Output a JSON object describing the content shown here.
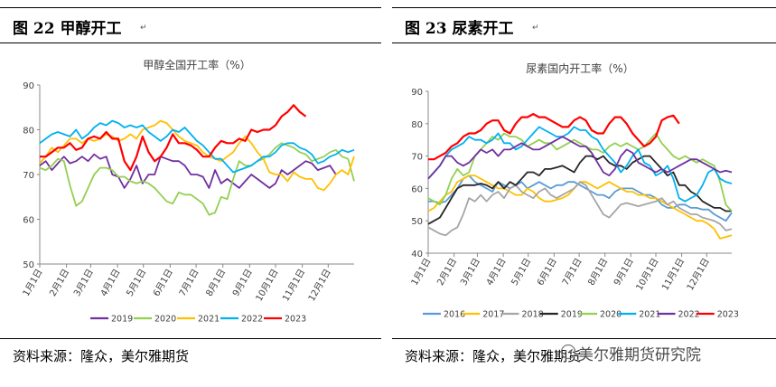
{
  "left": {
    "fig_title": "图 22    甲醇开工",
    "source": "资料来源：隆众，美尔雅期货",
    "chart_data": {
      "type": "line",
      "title": "甲醇全国开工率（%）",
      "xlabel": "",
      "ylabel": "",
      "ylim": [
        50,
        90
      ],
      "y_ticks": [
        50,
        60,
        70,
        80,
        90
      ],
      "x_range": [
        1,
        53
      ],
      "x_ticks": [
        {
          "label": "1月1日",
          "x": 1
        },
        {
          "label": "2月1日",
          "x": 5.43
        },
        {
          "label": "3月1日",
          "x": 9.43
        },
        {
          "label": "4月1日",
          "x": 13.86
        },
        {
          "label": "5月1日",
          "x": 18.14
        },
        {
          "label": "6月1日",
          "x": 22.57
        },
        {
          "label": "7月1日",
          "x": 26.86
        },
        {
          "label": "8月1日",
          "x": 31.29
        },
        {
          "label": "9月1日",
          "x": 35.71
        },
        {
          "label": "10月1日",
          "x": 40
        },
        {
          "label": "11月1日",
          "x": 44.43
        },
        {
          "label": "12月1日",
          "x": 48.71
        }
      ],
      "grid": false,
      "legend": "bottom",
      "series": [
        {
          "name": "2019",
          "color": "#7030A0",
          "values": [
            72,
            73,
            71,
            72.5,
            74,
            72.5,
            73,
            74,
            73,
            74.5,
            73.5,
            74,
            70,
            69.5,
            67,
            69,
            72,
            68,
            70,
            70,
            74,
            73.5,
            73,
            73,
            72,
            70,
            70,
            69.5,
            67,
            71,
            68,
            69,
            68,
            67,
            68.5,
            70,
            69,
            68,
            67,
            68,
            71,
            70,
            71,
            72,
            73,
            72.5,
            71,
            71.5,
            72,
            70,
            null,
            null,
            null
          ]
        },
        {
          "name": "2020",
          "color": "#92D050",
          "values": [
            71.5,
            71,
            72,
            73.5,
            73,
            67.5,
            63,
            64,
            67,
            70,
            71.5,
            71.5,
            71,
            69.5,
            69.5,
            68.5,
            68,
            68.5,
            68,
            67,
            65.5,
            64,
            63.5,
            66,
            65.5,
            65.5,
            64.5,
            63.5,
            61,
            61.5,
            65,
            64.5,
            69,
            73,
            72,
            72,
            73,
            73.5,
            74.5,
            76,
            77,
            76.5,
            76,
            75,
            74.5,
            73,
            73.5,
            74,
            75,
            75.5,
            74,
            73.5,
            68.5
          ]
        },
        {
          "name": "2021",
          "color": "#FFC000",
          "values": [
            72.5,
            74,
            76,
            75,
            76.5,
            78,
            78,
            77,
            78,
            77.5,
            78,
            79,
            78.5,
            77.5,
            78,
            79,
            78,
            80,
            80.5,
            81,
            82,
            81.5,
            80,
            78.5,
            77.5,
            77,
            76.5,
            75,
            74,
            73.5,
            73,
            74,
            75,
            77,
            78.5,
            77,
            75,
            73.5,
            70.5,
            70,
            70,
            68.5,
            70.5,
            69.5,
            69,
            69,
            67,
            66.5,
            68,
            70,
            71,
            70,
            74
          ]
        },
        {
          "name": "2022",
          "color": "#00B0F0",
          "values": [
            77,
            78,
            79,
            79.5,
            79,
            78.5,
            80,
            78,
            79,
            80.5,
            81.5,
            81,
            82,
            81.5,
            80.5,
            81,
            80.5,
            81,
            79.5,
            78.5,
            77.5,
            78.5,
            80,
            79.5,
            80.5,
            79,
            77.5,
            76.5,
            75,
            73.5,
            73.5,
            72,
            70.5,
            71,
            71.5,
            72,
            73,
            74,
            74,
            75,
            76.5,
            77,
            77,
            76,
            75.5,
            74.5,
            72.5,
            73,
            74,
            74.5,
            75.5,
            75,
            75.5
          ]
        },
        {
          "name": "2023",
          "color": "#FF0000",
          "values": [
            74,
            74,
            75,
            76,
            76,
            77,
            75.5,
            76,
            78,
            78.5,
            78,
            79.5,
            78,
            78,
            73,
            71,
            74,
            78.5,
            75,
            73,
            74,
            76,
            79,
            77,
            77,
            76.5,
            75.5,
            74,
            74,
            76,
            77.5,
            77,
            77,
            78,
            77.5,
            80,
            79.5,
            80,
            80,
            81,
            83,
            84,
            85.5,
            84,
            83,
            null,
            null,
            null,
            null,
            null,
            null,
            null,
            null
          ]
        }
      ]
    }
  },
  "right": {
    "fig_title": "图 23    尿素开工",
    "source": "资料来源：隆众，美尔雅期货",
    "chart_data": {
      "type": "line",
      "title": "尿素国内开工率（%）",
      "xlabel": "",
      "ylabel": "",
      "ylim": [
        40,
        90
      ],
      "y_ticks": [
        40,
        50,
        60,
        70,
        80,
        90
      ],
      "x_range": [
        1,
        53
      ],
      "x_ticks": [
        {
          "label": "1月1日",
          "x": 1
        },
        {
          "label": "2月1日",
          "x": 5.43
        },
        {
          "label": "3月1日",
          "x": 9.43
        },
        {
          "label": "4月1日",
          "x": 13.86
        },
        {
          "label": "5月1日",
          "x": 18.14
        },
        {
          "label": "6月1日",
          "x": 22.57
        },
        {
          "label": "7月1日",
          "x": 26.86
        },
        {
          "label": "8月1日",
          "x": 31.29
        },
        {
          "label": "9月1日",
          "x": 35.71
        },
        {
          "label": "10月1日",
          "x": 40
        },
        {
          "label": "11月1日",
          "x": 44.43
        },
        {
          "label": "12月1日",
          "x": 48.71
        }
      ],
      "grid": false,
      "legend": "bottom",
      "series": [
        {
          "name": "2016",
          "color": "#5B9BD5",
          "values": [
            56,
            56,
            55.5,
            56,
            58,
            60,
            63,
            64,
            62,
            61,
            60,
            59,
            62,
            61,
            60,
            61,
            62,
            60,
            61,
            62,
            61,
            60,
            61,
            61,
            62,
            62,
            61,
            60,
            59,
            58,
            58,
            57,
            59,
            60,
            60,
            60,
            59,
            58,
            58,
            57,
            55,
            54,
            54,
            55,
            55,
            54,
            54,
            53.5,
            53.5,
            52,
            51,
            50,
            52.5
          ]
        },
        {
          "name": "2017",
          "color": "#FFC000",
          "values": [
            53,
            54,
            56,
            58,
            59,
            62,
            63,
            64,
            64,
            63,
            62,
            61,
            60,
            60,
            59,
            58,
            58,
            60,
            59,
            57,
            56,
            56,
            56.5,
            57,
            58,
            60,
            62,
            62,
            61,
            60,
            61,
            62,
            61,
            60,
            59,
            59,
            58,
            58,
            57,
            57,
            56,
            55,
            54,
            53,
            52,
            51,
            50,
            50,
            49,
            47.5,
            44.5,
            45,
            45.5
          ]
        },
        {
          "name": "2018",
          "color": "#A5A5A5",
          "values": [
            48,
            47,
            46,
            45.5,
            47,
            48,
            52,
            57,
            56,
            58,
            56,
            58,
            59,
            57,
            60,
            61,
            59,
            58,
            57,
            59,
            60,
            58,
            57,
            58,
            59,
            60,
            62,
            61,
            58,
            55,
            52,
            51,
            53,
            55,
            55.5,
            55,
            54.5,
            55,
            55.5,
            56,
            57,
            55,
            56,
            54,
            53,
            52,
            52,
            51,
            50.5,
            50,
            49,
            47,
            47.5
          ]
        },
        {
          "name": "2019",
          "color": "#262626",
          "values": [
            49,
            50,
            51,
            54,
            57,
            60,
            61,
            61,
            61,
            61.5,
            61,
            60,
            62,
            60,
            62,
            61,
            63,
            65,
            65,
            64,
            66,
            66,
            66.5,
            67,
            66,
            65,
            68,
            70,
            70,
            69,
            70,
            68,
            67,
            67,
            66,
            68,
            69,
            70,
            70,
            68,
            66,
            64,
            65,
            61,
            61,
            59,
            58,
            56,
            55,
            54,
            54,
            53,
            53
          ]
        },
        {
          "name": "2020",
          "color": "#92D050",
          "values": [
            57,
            56,
            55,
            58,
            63,
            66,
            64,
            65,
            70,
            72,
            74,
            76,
            75,
            77,
            76,
            76,
            75,
            73,
            74,
            75,
            74,
            74,
            72,
            73,
            74,
            75,
            74,
            73,
            72,
            72,
            71,
            73,
            74,
            73,
            74,
            73,
            72,
            73,
            75,
            77,
            74,
            72,
            70,
            69,
            70,
            69,
            68,
            69,
            68,
            67,
            62,
            55,
            53
          ]
        },
        {
          "name": "2021",
          "color": "#00B0F0",
          "values": [
            63,
            65,
            67,
            70,
            72,
            73,
            74,
            76,
            75,
            75,
            74,
            75,
            77,
            74,
            74,
            72,
            73,
            75,
            77,
            79,
            78,
            77,
            76,
            76,
            77,
            79,
            78,
            78,
            76,
            75,
            72,
            70,
            68,
            65,
            67,
            70,
            72,
            68,
            67,
            64,
            65,
            67,
            63,
            57,
            56,
            57,
            58,
            61,
            65,
            66,
            63,
            62,
            61.5
          ]
        },
        {
          "name": "2022",
          "color": "#7030A0",
          "values": [
            63,
            65,
            67,
            70,
            70,
            68,
            67,
            68,
            70,
            72,
            71,
            72,
            70,
            72,
            72,
            73,
            74,
            73,
            72,
            72,
            73,
            74,
            75,
            76,
            75,
            74,
            73,
            73,
            71,
            68,
            65,
            64,
            66,
            70,
            72,
            71,
            68,
            67,
            66,
            65,
            66,
            65,
            66,
            67,
            68,
            69,
            69,
            68,
            67,
            66,
            65,
            65.5,
            65
          ]
        },
        {
          "name": "2023",
          "color": "#FF0000",
          "values": [
            69,
            69,
            70,
            71,
            73,
            74,
            76,
            77,
            77,
            78,
            80,
            81,
            81,
            78,
            77,
            80,
            82,
            82,
            83,
            82,
            82,
            81,
            80,
            79,
            79,
            81,
            82,
            81,
            78,
            77,
            77,
            80,
            82,
            82,
            80,
            77,
            75,
            73,
            74,
            76,
            81,
            82,
            82.5,
            80,
            null,
            null,
            null,
            null,
            null,
            null,
            null,
            null,
            null
          ]
        }
      ]
    }
  },
  "watermark": "美尔雅期货研究院"
}
